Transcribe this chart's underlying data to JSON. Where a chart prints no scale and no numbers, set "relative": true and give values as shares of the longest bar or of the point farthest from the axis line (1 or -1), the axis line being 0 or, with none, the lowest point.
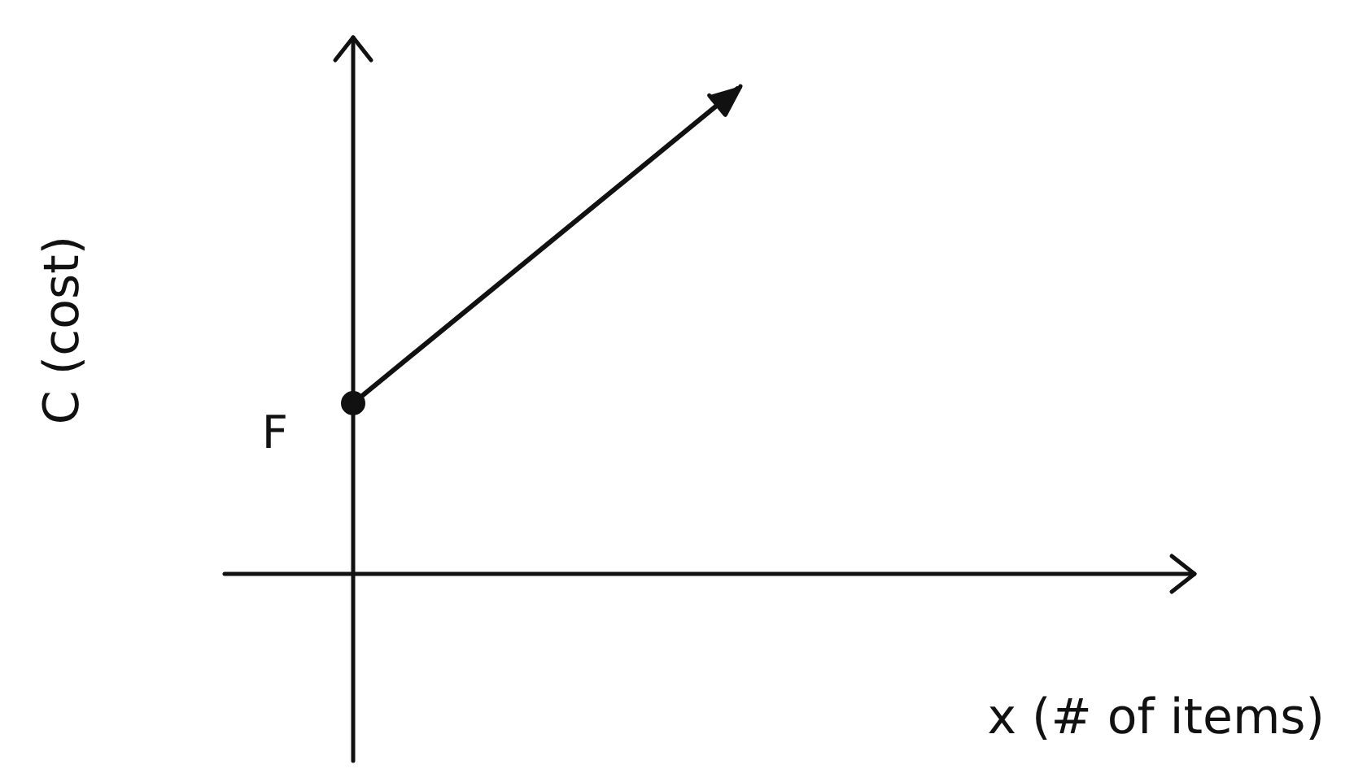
{
  "chart_data": {
    "type": "line",
    "relative": true,
    "xlabel": "x (# of items)",
    "ylabel": "C (cost)",
    "categories": [
      null,
      null
    ],
    "series": [
      {
        "color": "#111111",
        "values": [
          0.35,
          1
        ]
      }
    ],
    "marker": "circle",
    "grid": false,
    "legend": false,
    "annotations": [
      "F"
    ]
  }
}
